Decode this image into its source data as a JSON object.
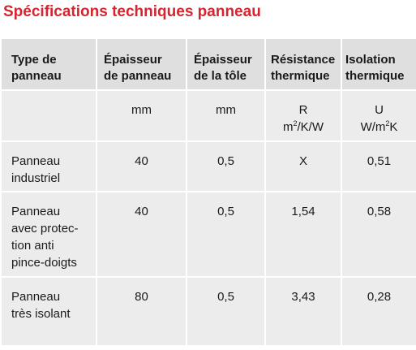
{
  "title": "Spécifications techniques panneau",
  "headers": {
    "type": [
      "Type de",
      "panneau"
    ],
    "epaisseur_panneau": [
      "Épaisseur",
      "de panneau"
    ],
    "epaisseur_tole": [
      "Épaisseur",
      "de la tôle"
    ],
    "resistance": [
      "Résistance",
      "thermique"
    ],
    "isolation": [
      "Isolation",
      "thermique"
    ]
  },
  "units": {
    "epaisseur_panneau": "mm",
    "epaisseur_tole": "mm",
    "resistance_symbol": "R",
    "resistance_unit_pre": "m",
    "resistance_unit_sup": "2",
    "resistance_unit_post": "/K/W",
    "isolation_symbol": "U",
    "isolation_unit_pre": "W/m",
    "isolation_unit_sup": "2",
    "isolation_unit_post": "K"
  },
  "rows": [
    {
      "type": [
        "Panneau",
        "industriel"
      ],
      "epaisseur_panneau": "40",
      "epaisseur_tole": "0,5",
      "resistance": "X",
      "isolation": "0,51"
    },
    {
      "type": [
        "Panneau",
        "avec protec-",
        "tion anti",
        "pince-doigts"
      ],
      "epaisseur_panneau": "40",
      "epaisseur_tole": "0,5",
      "resistance": "1,54",
      "isolation": "0,58"
    },
    {
      "type": [
        "Panneau",
        "très isolant"
      ],
      "epaisseur_panneau": "80",
      "epaisseur_tole": "0,5",
      "resistance": "3,43",
      "isolation": "0,28"
    }
  ]
}
